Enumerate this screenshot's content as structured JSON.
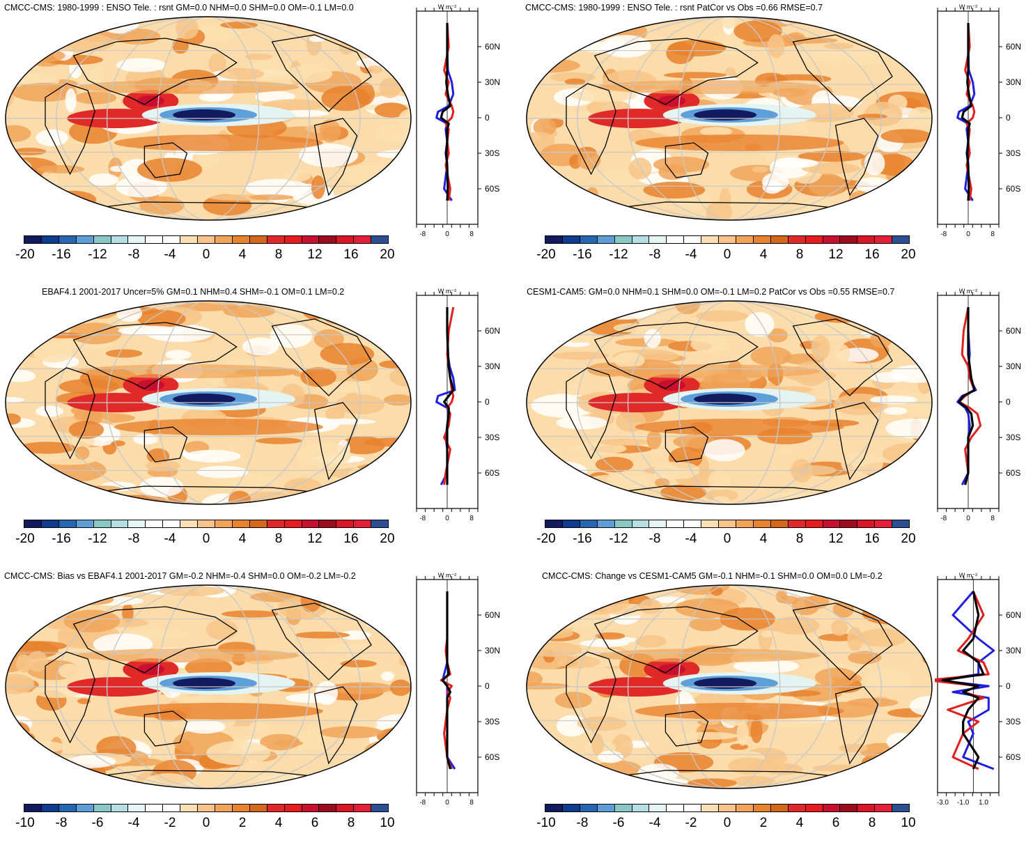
{
  "panels": [
    {
      "id": "p1",
      "title": "CMCC-CMS: 1980-1999 : ENSO Tele. : rsnt GM=0.0 NHM=0.0 SHM=0.0 OM=-0.1 LM=0.0",
      "cbar_labels": [
        "-20",
        "-16",
        "-12",
        "-8",
        "-4",
        "0",
        "4",
        "8",
        "12",
        "16",
        "20"
      ],
      "zonal_xticks": [
        "-8",
        "0",
        "8"
      ],
      "zonal_unit": "W m⁻²"
    },
    {
      "id": "p2",
      "title": "CMCC-CMS: 1980-1999 : ENSO Tele. : rsnt PatCor vs Obs =0.66 RMSE=0.7",
      "cbar_labels": [
        "-20",
        "-16",
        "-12",
        "-8",
        "-4",
        "0",
        "4",
        "8",
        "12",
        "16",
        "20"
      ],
      "zonal_xticks": [
        "-8",
        "0",
        "8"
      ],
      "zonal_unit": "W m⁻²"
    },
    {
      "id": "p3",
      "title": "EBAF4.1 2001-2017 Uncer=5% GM=0.1 NHM=0.4 SHM=-0.1 OM=0.1 LM=0.2",
      "cbar_labels": [
        "-20",
        "-16",
        "-12",
        "-8",
        "-4",
        "0",
        "4",
        "8",
        "12",
        "16",
        "20"
      ],
      "zonal_xticks": [
        "-8",
        "0",
        "8"
      ],
      "zonal_unit": "W m⁻²"
    },
    {
      "id": "p4",
      "title": "CESM1-CAM5: GM=0.0 NHM=0.1 SHM=0.0 OM=-0.1 LM=0.2 PatCor vs Obs =0.55 RMSE=0.7",
      "cbar_labels": [
        "-20",
        "-16",
        "-12",
        "-8",
        "-4",
        "0",
        "4",
        "8",
        "12",
        "16",
        "20"
      ],
      "zonal_xticks": [
        "-8",
        "0",
        "8"
      ],
      "zonal_unit": "W m⁻²"
    },
    {
      "id": "p5",
      "title": "CMCC-CMS: Bias vs EBAF4.1 2001-2017 GM=-0.2 NHM=-0.4 SHM=0.0 OM=-0.2 LM=-0.2",
      "cbar_labels": [
        "-10",
        "-8",
        "-6",
        "-4",
        "-2",
        "0",
        "2",
        "4",
        "6",
        "8",
        "10"
      ],
      "zonal_xticks": [
        "-8",
        "0",
        "8"
      ],
      "zonal_unit": "W m⁻²"
    },
    {
      "id": "p6",
      "title": "CMCC-CMS: Change vs CESM1-CAM5 GM=-0.1 NHM=-0.1 SHM=0.0 OM=0.0 LM=-0.2",
      "cbar_labels": [
        "-10",
        "-8",
        "-6",
        "-4",
        "-2",
        "0",
        "2",
        "4",
        "6",
        "8",
        "10"
      ],
      "zonal_xticks": [
        "-3.0",
        "-1.0",
        "1.0"
      ],
      "zonal_unit": "W m⁻²"
    }
  ],
  "lat_ticks": [
    "60N",
    "30N",
    "0",
    "30S",
    "60S"
  ],
  "colors": {
    "palette": [
      "#141a5e",
      "#0f3c8c",
      "#2466b4",
      "#5f9fd9",
      "#86c9c6",
      "#b4e0e3",
      "#e4f4f3",
      "#ffffff",
      "#ffffff",
      "#fde0b1",
      "#f7c58a",
      "#f0a55a",
      "#e8822e",
      "#d4681d",
      "#e02a2a",
      "#e81c1c",
      "#c8102e",
      "#9e0a1e",
      "#d81828",
      "#e51e3a",
      "#2a4f92"
    ],
    "ocean": "#fbdcaa",
    "land_line": "#000000",
    "grid": "#c8c8c8",
    "blue_line": "#1f1fe0",
    "red_line": "#e01f1f",
    "black_line": "#000000"
  },
  "chart_data": [
    {
      "type": "heatmap",
      "panel": "p1",
      "title": "CMCC-CMS: 1980-1999 : ENSO Tele. : rsnt GM=0.0 NHM=0.0 SHM=0.0 OM=-0.1 LM=0.0",
      "color_levels": [
        -20,
        -18,
        -16,
        -14,
        -12,
        -10,
        -8,
        -6,
        -4,
        -2,
        0,
        2,
        4,
        6,
        8,
        10,
        12,
        14,
        16,
        18,
        20
      ],
      "zonal_mean": {
        "lat": [
          80,
          60,
          40,
          30,
          20,
          10,
          5,
          0,
          -5,
          -10,
          -20,
          -30,
          -40,
          -60,
          -70
        ],
        "black": [
          0,
          0,
          0,
          -0.3,
          0.2,
          1,
          -1.5,
          -2,
          0.5,
          0,
          0,
          -0.3,
          0,
          0.2,
          0
        ],
        "red": [
          0,
          0.5,
          -1,
          0.5,
          -0.5,
          1.5,
          2,
          1.5,
          -0.5,
          0.5,
          0,
          0.5,
          -0.5,
          1,
          0.5
        ],
        "blue": [
          0,
          0,
          0.2,
          1.5,
          2,
          0.5,
          -3,
          -3.5,
          0,
          -0.5,
          0,
          -0.5,
          0,
          -1,
          1.5
        ],
        "xlim": [
          -10,
          10
        ]
      }
    },
    {
      "type": "heatmap",
      "panel": "p2",
      "title": "CMCC-CMS: 1980-1999 : ENSO Tele. : rsnt PatCor vs Obs =0.66 RMSE=0.7",
      "color_levels": [
        -20,
        -18,
        -16,
        -14,
        -12,
        -10,
        -8,
        -6,
        -4,
        -2,
        0,
        2,
        4,
        6,
        8,
        10,
        12,
        14,
        16,
        18,
        20
      ],
      "zonal_mean": {
        "lat": [
          80,
          60,
          40,
          30,
          20,
          10,
          5,
          0,
          -5,
          -10,
          -20,
          -30,
          -40,
          -60,
          -70
        ],
        "black": [
          0,
          0,
          0,
          -0.3,
          0.2,
          1,
          -1.5,
          -2,
          0.5,
          0,
          0,
          -0.3,
          0,
          0.2,
          0
        ],
        "red": [
          0,
          0.5,
          -1,
          0.5,
          -0.5,
          1.5,
          2,
          1.5,
          -0.5,
          0.5,
          0,
          0.5,
          -0.5,
          1,
          0.5
        ],
        "blue": [
          0,
          0,
          0.2,
          1.5,
          2,
          0.5,
          -3,
          -3.5,
          0,
          -0.5,
          0,
          -0.5,
          0,
          -1,
          1.5
        ],
        "xlim": [
          -10,
          10
        ]
      }
    },
    {
      "type": "heatmap",
      "panel": "p3",
      "title": "EBAF4.1 2001-2017 Uncer=5% GM=0.1 NHM=0.4 SHM=-0.1 OM=0.1 LM=0.2",
      "color_levels": [
        -20,
        -18,
        -16,
        -14,
        -12,
        -10,
        -8,
        -6,
        -4,
        -2,
        0,
        2,
        4,
        6,
        8,
        10,
        12,
        14,
        16,
        18,
        20
      ],
      "zonal_mean": {
        "lat": [
          80,
          60,
          40,
          30,
          20,
          10,
          5,
          0,
          -5,
          -10,
          -20,
          -30,
          -40,
          -60,
          -70
        ],
        "black": [
          0,
          0,
          0.3,
          0.5,
          1,
          2,
          0.5,
          -1,
          0.5,
          0.5,
          0,
          0,
          0,
          0,
          0
        ],
        "red": [
          2,
          0.5,
          0,
          0.5,
          1,
          1.5,
          2,
          1.5,
          0,
          1,
          0.5,
          -1,
          1,
          -0.5,
          -1
        ],
        "blue": [
          0,
          0,
          0.2,
          0.8,
          2,
          2.5,
          -3,
          -3.5,
          0,
          0.5,
          0,
          -0.5,
          0,
          0,
          -2
        ],
        "xlim": [
          -10,
          10
        ]
      }
    },
    {
      "type": "heatmap",
      "panel": "p4",
      "title": "CESM1-CAM5: GM=0.0 NHM=0.1 SHM=0.0 OM=-0.1 LM=0.2 PatCor vs Obs =0.55 RMSE=0.7",
      "color_levels": [
        -20,
        -18,
        -16,
        -14,
        -12,
        -10,
        -8,
        -6,
        -4,
        -2,
        0,
        2,
        4,
        6,
        8,
        10,
        12,
        14,
        16,
        18,
        20
      ],
      "zonal_mean": {
        "lat": [
          80,
          60,
          40,
          30,
          20,
          10,
          5,
          0,
          -5,
          -10,
          -20,
          -30,
          -40,
          -60,
          -70
        ],
        "black": [
          0,
          0,
          0,
          0.5,
          1,
          2,
          -1.5,
          -3,
          -0.5,
          1,
          1.5,
          0,
          0,
          0,
          -1
        ],
        "red": [
          0,
          -1.5,
          -2,
          0,
          0.5,
          2,
          -1,
          -3,
          0.5,
          3,
          4,
          1,
          -1,
          0,
          -1
        ],
        "blue": [
          0,
          0,
          0.5,
          0,
          0.5,
          2.5,
          -2,
          -3.5,
          -1,
          0,
          0.5,
          0,
          0,
          0,
          -2
        ],
        "xlim": [
          -10,
          10
        ]
      }
    },
    {
      "type": "heatmap",
      "panel": "p5",
      "title": "CMCC-CMS: Bias vs EBAF4.1 2001-2017 GM=-0.2 NHM=-0.4 SHM=0.0 OM=-0.2 LM=-0.2",
      "color_levels": [
        -10,
        -9,
        -8,
        -7,
        -6,
        -5,
        -4,
        -3,
        -2,
        -1,
        0,
        1,
        2,
        3,
        4,
        5,
        6,
        7,
        8,
        9,
        10
      ],
      "zonal_mean": {
        "lat": [
          80,
          60,
          40,
          30,
          20,
          10,
          5,
          0,
          -5,
          -10,
          -20,
          -30,
          -40,
          -60,
          -70
        ],
        "black": [
          0,
          0,
          0,
          0,
          0,
          0.5,
          -1.5,
          0,
          1,
          0,
          0,
          0,
          0,
          0,
          1
        ],
        "red": [
          0,
          0,
          0,
          -0.5,
          0,
          1,
          -2,
          1.5,
          0,
          1,
          0,
          -0.5,
          -1,
          0,
          1.5
        ],
        "blue": [
          0,
          0,
          0,
          0,
          0,
          -1,
          -1.5,
          0,
          0,
          0,
          0,
          0,
          0,
          0,
          2.5
        ],
        "xlim": [
          -10,
          10
        ]
      }
    },
    {
      "type": "heatmap",
      "panel": "p6",
      "title": "CMCC-CMS: Change vs CESM1-CAM5 GM=-0.1 NHM=-0.1 SHM=0.0 OM=0.0 LM=-0.2",
      "color_levels": [
        -10,
        -9,
        -8,
        -7,
        -6,
        -5,
        -4,
        -3,
        -2,
        -1,
        0,
        1,
        2,
        3,
        4,
        5,
        6,
        7,
        8,
        9,
        10
      ],
      "zonal_mean": {
        "lat": [
          80,
          60,
          40,
          30,
          20,
          10,
          5,
          0,
          -5,
          -10,
          -20,
          -30,
          -40,
          -60,
          -70
        ],
        "black": [
          0,
          0.5,
          0,
          -1,
          0.5,
          1,
          -3,
          0.5,
          -1,
          0.5,
          -0.5,
          -1,
          -1,
          0.5,
          0
        ],
        "red": [
          0,
          1,
          -0.5,
          -1.5,
          1,
          1.5,
          -4.5,
          0.5,
          -1,
          1,
          -2.5,
          0.5,
          -1,
          -2,
          0.5
        ],
        "blue": [
          0,
          -2,
          0.5,
          2,
          0.5,
          0.5,
          -3.5,
          1.5,
          -2,
          1.5,
          1.5,
          -0.5,
          0,
          -1,
          2
        ],
        "xlim": [
          -3.5,
          2.5
        ]
      }
    }
  ]
}
